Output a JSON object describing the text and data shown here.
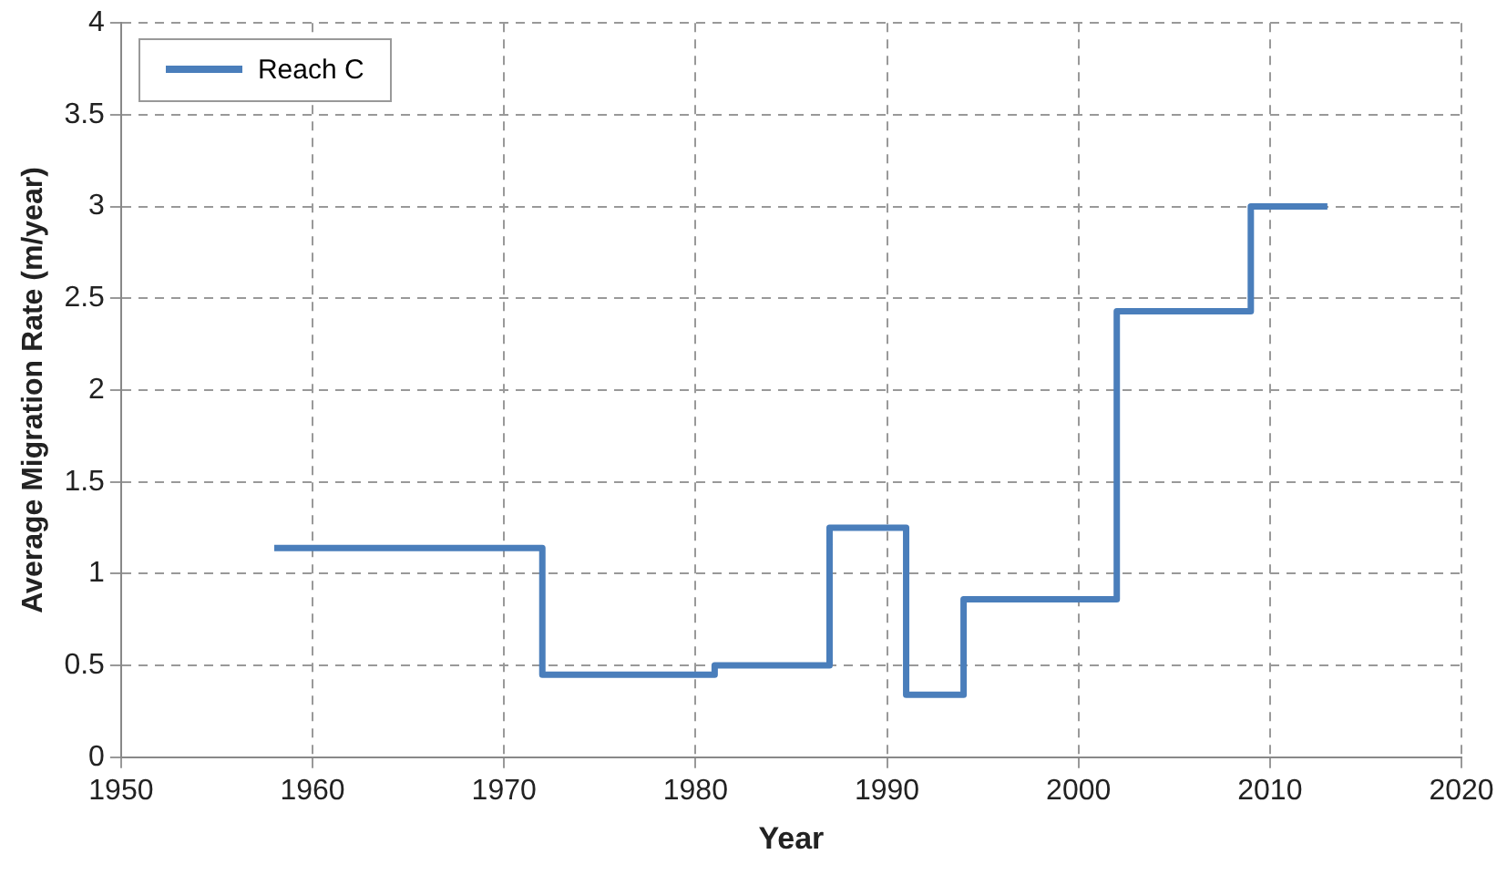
{
  "chart_data": {
    "type": "step",
    "xlabel": "Year",
    "ylabel": "Average Migration Rate (m/year)",
    "x": [
      1958,
      1972,
      1981,
      1987,
      1991,
      1994,
      2002,
      2009,
      2013
    ],
    "series": [
      {
        "name": "Reach C",
        "color": "#4a7ebb",
        "values": [
          1.14,
          0.45,
          0.5,
          1.25,
          0.34,
          0.86,
          2.43,
          3,
          3
        ]
      }
    ],
    "xlim": [
      1950,
      2020
    ],
    "xticks": [
      1950,
      1960,
      1970,
      1980,
      1990,
      2000,
      2010,
      2020
    ],
    "ylim": [
      0,
      4
    ],
    "yticks": [
      0,
      0.5,
      1,
      1.5,
      2,
      2.5,
      3,
      3.5,
      4
    ],
    "grid": true,
    "legend": "top left",
    "line_style": "solid",
    "marker": "none"
  }
}
